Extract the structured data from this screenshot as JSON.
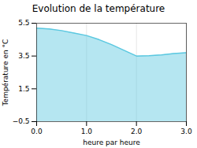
{
  "chart_data": {
    "type": "area",
    "title": "Evolution de la température",
    "xlabel": "heure par heure",
    "ylabel": "Température en °C",
    "x": [
      0,
      0.25,
      0.5,
      0.75,
      1.0,
      1.25,
      1.5,
      1.75,
      2.0,
      2.25,
      2.5,
      2.75,
      3.0
    ],
    "values": [
      5.2,
      5.15,
      5.05,
      4.9,
      4.75,
      4.5,
      4.2,
      3.85,
      3.5,
      3.52,
      3.57,
      3.65,
      3.7
    ],
    "color": "#5bc8e0",
    "xlim": [
      0,
      3
    ],
    "ylim": [
      -0.5,
      5.5
    ],
    "xticks": [
      0,
      1,
      2,
      3
    ],
    "yticks": [
      -0.5,
      1.5,
      3.5,
      5.5
    ],
    "grid": "x"
  }
}
